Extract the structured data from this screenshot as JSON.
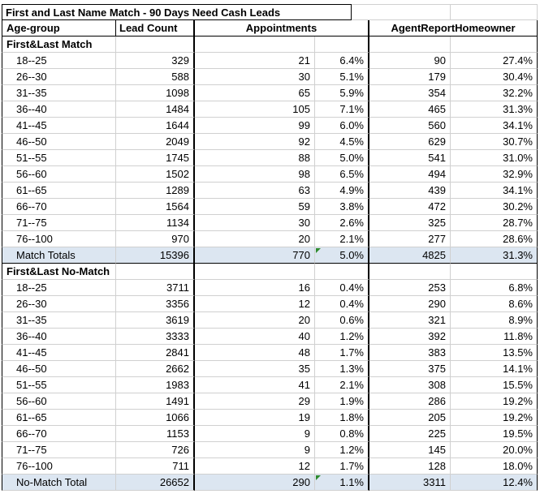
{
  "title": "First and Last Name Match - 90 Days Need Cash Leads",
  "headers": {
    "age_group": "Age-group",
    "lead_count": "Lead Count",
    "appointments": "Appointments",
    "agent_report_homeowner": "AgentReportHomeowner"
  },
  "colors": {
    "total_row_bg": "#dce6f1",
    "gridline": "#d0d0d0",
    "border": "#000000",
    "flag_green": "#2e8b2e"
  },
  "sections": [
    {
      "label": "First&Last Match",
      "rows": [
        [
          "18--25",
          "329",
          "21",
          "6.4%",
          "90",
          "27.4%"
        ],
        [
          "26--30",
          "588",
          "30",
          "5.1%",
          "179",
          "30.4%"
        ],
        [
          "31--35",
          "1098",
          "65",
          "5.9%",
          "354",
          "32.2%"
        ],
        [
          "36--40",
          "1484",
          "105",
          "7.1%",
          "465",
          "31.3%"
        ],
        [
          "41--45",
          "1644",
          "99",
          "6.0%",
          "560",
          "34.1%"
        ],
        [
          "46--50",
          "2049",
          "92",
          "4.5%",
          "629",
          "30.7%"
        ],
        [
          "51--55",
          "1745",
          "88",
          "5.0%",
          "541",
          "31.0%"
        ],
        [
          "56--60",
          "1502",
          "98",
          "6.5%",
          "494",
          "32.9%"
        ],
        [
          "61--65",
          "1289",
          "63",
          "4.9%",
          "439",
          "34.1%"
        ],
        [
          "66--70",
          "1564",
          "59",
          "3.8%",
          "472",
          "30.2%"
        ],
        [
          "71--75",
          "1134",
          "30",
          "2.6%",
          "325",
          "28.7%"
        ],
        [
          "76--100",
          "970",
          "20",
          "2.1%",
          "277",
          "28.6%"
        ]
      ],
      "total": {
        "label": "Match Totals",
        "values": [
          "15396",
          "770",
          "5.0%",
          "4825",
          "31.3%"
        ],
        "flag_on_appt_pct": true,
        "black_bottom": true
      }
    },
    {
      "label": "First&Last No-Match",
      "rows": [
        [
          "18--25",
          "3711",
          "16",
          "0.4%",
          "253",
          "6.8%"
        ],
        [
          "26--30",
          "3356",
          "12",
          "0.4%",
          "290",
          "8.6%"
        ],
        [
          "31--35",
          "3619",
          "20",
          "0.6%",
          "321",
          "8.9%"
        ],
        [
          "36--40",
          "3333",
          "40",
          "1.2%",
          "392",
          "11.8%"
        ],
        [
          "41--45",
          "2841",
          "48",
          "1.7%",
          "383",
          "13.5%"
        ],
        [
          "46--50",
          "2662",
          "35",
          "1.3%",
          "375",
          "14.1%"
        ],
        [
          "51--55",
          "1983",
          "41",
          "2.1%",
          "308",
          "15.5%"
        ],
        [
          "56--60",
          "1491",
          "29",
          "1.9%",
          "286",
          "19.2%"
        ],
        [
          "61--65",
          "1066",
          "19",
          "1.8%",
          "205",
          "19.2%"
        ],
        [
          "66--70",
          "1153",
          "9",
          "0.8%",
          "225",
          "19.5%"
        ],
        [
          "71--75",
          "726",
          "9",
          "1.2%",
          "145",
          "20.0%"
        ],
        [
          "76--100",
          "711",
          "12",
          "1.7%",
          "128",
          "18.0%"
        ]
      ],
      "total": {
        "label": "No-Match Total",
        "values": [
          "26652",
          "290",
          "1.1%",
          "3311",
          "12.4%"
        ],
        "flag_on_appt_pct": true,
        "black_bottom": false
      }
    }
  ]
}
